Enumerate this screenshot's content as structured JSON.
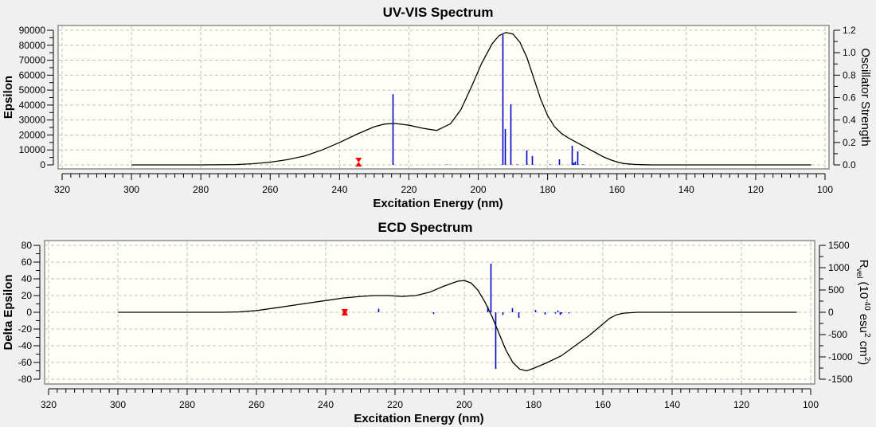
{
  "chart_data": [
    {
      "type": "line",
      "title": "UV-VIS Spectrum",
      "xlabel": "Excitation Energy (nm)",
      "ylabel": "Epsilon",
      "y2label": "Oscillator Strength",
      "xlim": [
        320,
        100
      ],
      "ylim": [
        0,
        90000
      ],
      "y2lim": [
        0,
        1.2
      ],
      "xticks": [
        320,
        300,
        280,
        260,
        240,
        220,
        200,
        180,
        160,
        140,
        120,
        100
      ],
      "yticks": [
        0,
        10000,
        20000,
        30000,
        40000,
        50000,
        60000,
        70000,
        80000,
        90000
      ],
      "y2ticks": [
        "0.0",
        "0.2",
        "0.4",
        "0.6",
        "0.8",
        "1.0",
        "1.2"
      ],
      "grid": true,
      "curve": {
        "name": "Epsilon",
        "x": [
          300,
          280,
          270,
          265,
          260,
          255,
          250,
          245,
          240,
          235,
          230,
          227,
          224,
          220,
          216,
          212,
          208,
          205,
          202,
          199,
          196,
          194,
          192,
          190,
          188,
          186,
          184,
          182,
          180,
          178,
          176,
          174,
          172,
          170,
          168,
          166,
          164,
          162,
          160,
          158,
          155,
          152,
          150,
          140,
          130,
          120,
          104
        ],
        "y": [
          0,
          0,
          200,
          800,
          1800,
          3500,
          6000,
          10000,
          15000,
          20500,
          25500,
          27300,
          27700,
          26500,
          24500,
          23000,
          27500,
          37000,
          52000,
          68000,
          81000,
          86500,
          88500,
          87500,
          82000,
          72000,
          58000,
          44000,
          33000,
          25500,
          21000,
          18000,
          15500,
          13000,
          10500,
          8000,
          5500,
          3500,
          2000,
          900,
          300,
          80,
          0,
          0,
          0,
          0,
          0
        ]
      },
      "sticks": {
        "name": "Oscillator Strength",
        "x": [
          224.8,
          209.0,
          193.1,
          192.4,
          190.8,
          188.9,
          186.2,
          184.4,
          179.5,
          176.8,
          173.1,
          172.5,
          172.0,
          171.5,
          170.0
        ],
        "y": [
          0.63,
          0.004,
          1.16,
          0.32,
          0.54,
          0.005,
          0.13,
          0.08,
          0.005,
          0.05,
          0.17,
          0.02,
          0.03,
          0.12,
          0.005
        ]
      },
      "marker": {
        "name": "experimental-marker",
        "x": 234.5,
        "color": "#ff0000"
      }
    },
    {
      "type": "line",
      "title": "ECD Spectrum",
      "xlabel": "Excitation Energy (nm)",
      "ylabel": "Delta Epsilon",
      "y2label_parts": [
        "R",
        "vel",
        " (10",
        "-40",
        " esu",
        "2",
        " cm",
        "2",
        ")"
      ],
      "xlim": [
        320,
        100
      ],
      "ylim": [
        -80,
        80
      ],
      "y2lim": [
        -1500,
        1500
      ],
      "xticks": [
        320,
        300,
        280,
        260,
        240,
        220,
        200,
        180,
        160,
        140,
        120,
        100
      ],
      "yticks": [
        -80,
        -60,
        -40,
        -20,
        0,
        20,
        40,
        60,
        80
      ],
      "y2ticks": [
        -1500,
        -1000,
        -500,
        0,
        500,
        1000,
        1500
      ],
      "grid": true,
      "curve": {
        "name": "Delta Epsilon",
        "x": [
          300,
          270,
          265,
          260,
          255,
          250,
          245,
          240,
          235,
          230,
          226,
          222,
          218,
          214,
          210,
          206,
          202,
          200,
          198,
          196,
          194,
          192,
          190,
          188,
          186,
          184,
          182,
          180,
          176,
          172,
          168,
          164,
          160,
          158,
          156,
          154,
          150,
          140,
          130,
          120,
          104
        ],
        "y": [
          0,
          0,
          0.5,
          2,
          5,
          8,
          11,
          14,
          17,
          19,
          20,
          20,
          19,
          20,
          24,
          31,
          37,
          38,
          35,
          26,
          12,
          -5,
          -25,
          -45,
          -60,
          -68,
          -70,
          -67,
          -60,
          -52,
          -40,
          -28,
          -14,
          -7,
          -3,
          -1,
          0,
          0,
          0,
          0,
          0
        ]
      },
      "sticks": {
        "name": "Rvel",
        "x": [
          224.8,
          209.0,
          193.3,
          192.4,
          191.0,
          188.9,
          186.2,
          184.4,
          179.5,
          176.8,
          173.8,
          173.1,
          172.5,
          172.0,
          170.0
        ],
        "y": [
          80,
          -40,
          130,
          1090,
          -1270,
          -60,
          90,
          -125,
          50,
          -50,
          -30,
          40,
          -60,
          -30,
          -25
        ]
      },
      "marker": {
        "name": "experimental-marker",
        "x": 234.5,
        "color": "#ff0000"
      }
    }
  ]
}
